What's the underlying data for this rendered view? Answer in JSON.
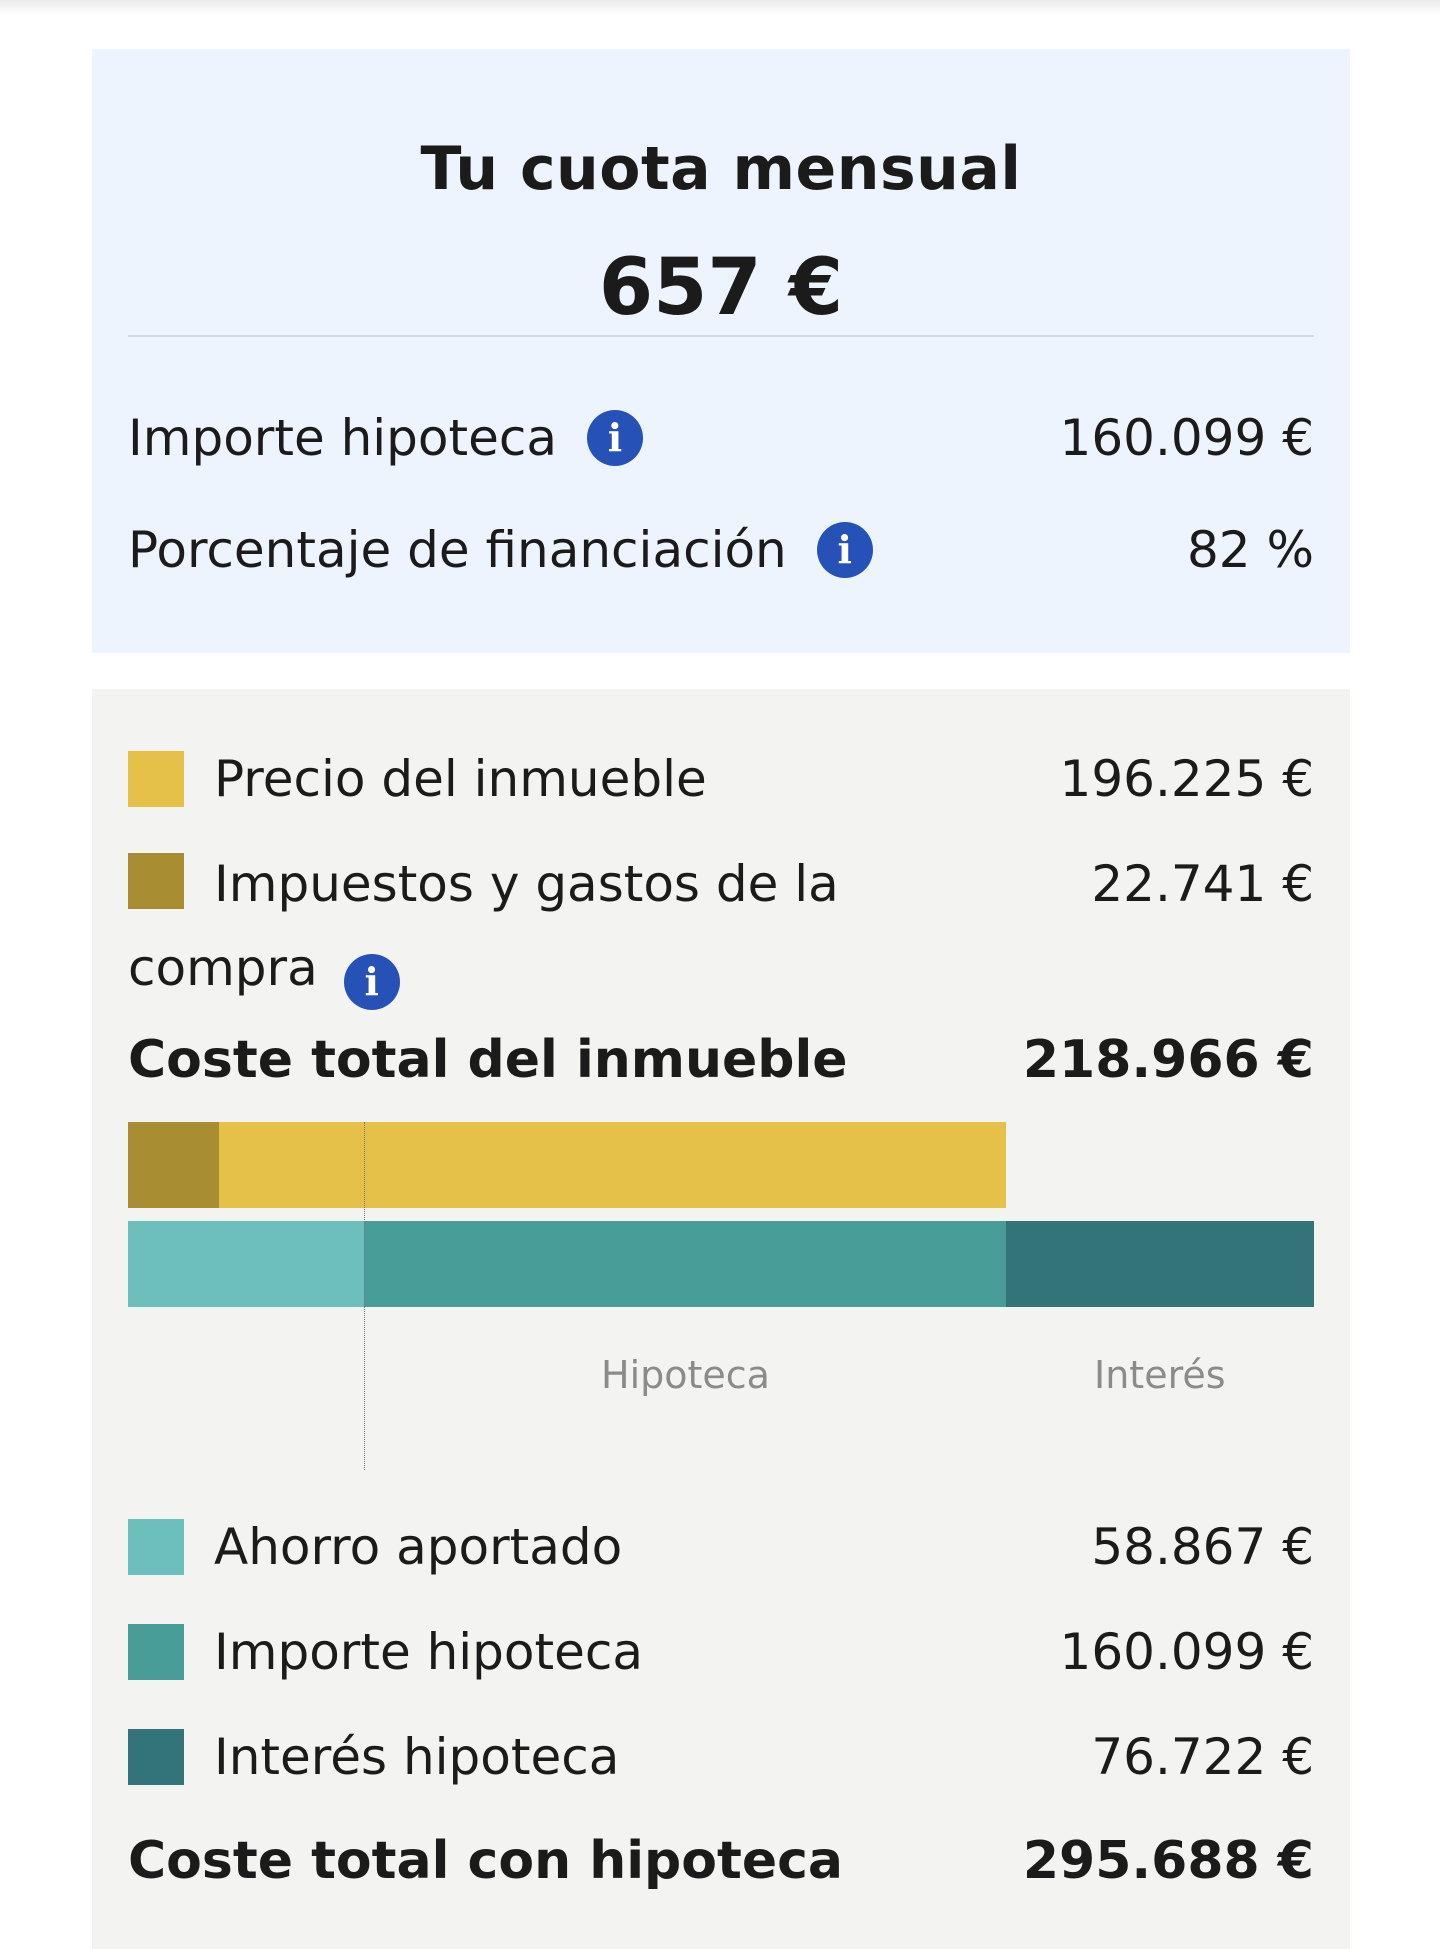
{
  "summary": {
    "title": "Tu cuota mensual",
    "monthly_payment": "657 €",
    "rows": [
      {
        "label": "Importe hipoteca",
        "value": "160.099 €"
      },
      {
        "label": "Porcentaje de financiación",
        "value": "82 %"
      }
    ],
    "info_glyph": "i"
  },
  "breakdown": {
    "property_items": [
      {
        "label": "Precio del inmueble",
        "value": "196.225 €",
        "color": "#e5c14a"
      },
      {
        "label": "Impuestos y gastos de la compra",
        "value": "22.741 €",
        "color": "#a88d32"
      }
    ],
    "property_total": {
      "label": "Coste total del inmueble",
      "value": "218.966 €"
    },
    "chart_labels": {
      "mortgage": "Hipoteca",
      "interest": "Interés"
    },
    "financing_items": [
      {
        "label": "Ahorro aportado",
        "value": "58.867 €",
        "color": "#6dbfbd"
      },
      {
        "label": "Importe hipoteca",
        "value": "160.099 €",
        "color": "#489d98"
      },
      {
        "label": "Interés hipoteca",
        "value": "76.722 €",
        "color": "#33737a"
      }
    ],
    "grand_total": {
      "label": "Coste total con hipoteca",
      "value": "295.688 €"
    }
  },
  "chart_data": {
    "type": "bar",
    "orientation": "horizontal-stacked",
    "bars": [
      {
        "segments": [
          {
            "name": "Impuestos y gastos de la compra",
            "value": 22741
          },
          {
            "name": "Precio del inmueble",
            "value": 196225
          }
        ]
      },
      {
        "segments": [
          {
            "name": "Ahorro aportado",
            "value": 58867
          },
          {
            "name": "Importe hipoteca",
            "value": 160099
          },
          {
            "name": "Interés hipoteca",
            "value": 76722
          }
        ]
      }
    ],
    "xlim": [
      0,
      295688
    ]
  }
}
